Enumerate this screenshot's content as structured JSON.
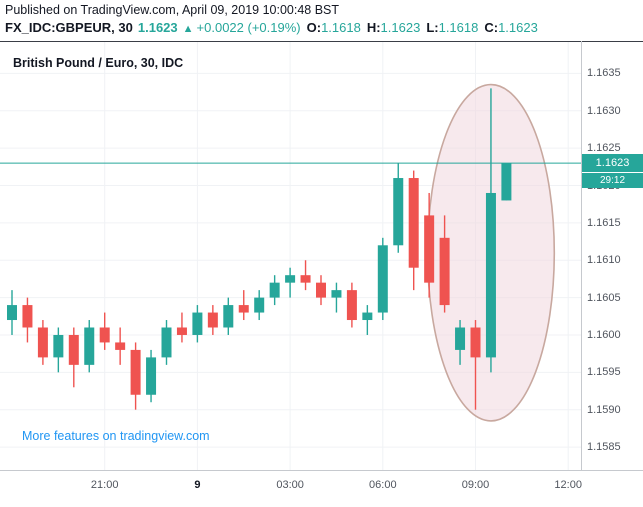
{
  "header": {
    "published_line": "Published on TradingView.com, April 09, 2019 10:00:48 BST",
    "symbol": "FX_IDC:GBPEUR, 30",
    "last_price": "1.1623",
    "up_arrow": "▲",
    "change": "+0.0022 (+0.19%)",
    "ohlc": [
      {
        "label": "O:",
        "value": "1.1618"
      },
      {
        "label": "H:",
        "value": "1.1623"
      },
      {
        "label": "L:",
        "value": "1.1618"
      },
      {
        "label": "C:",
        "value": "1.1623"
      }
    ]
  },
  "chart": {
    "promo_link": "More features on tradingview.com",
    "price_badge": "1.1623",
    "countdown_badge": "29:12"
  },
  "colors": {
    "up": "#26a69a",
    "down": "#ef5350",
    "link_blue": "#2196f3",
    "text_dark": "#131722",
    "text_axis": "#50555e",
    "highlight_fill": "#f0d7de",
    "highlight_stroke": "#c8a89f"
  },
  "chart_data": {
    "type": "candlestick",
    "title": "British Pound / Euro, 30, IDC",
    "symbol": "GBPEUR",
    "interval_minutes": 30,
    "last_price": 1.1623,
    "ylim": [
      1.1585,
      1.1635
    ],
    "grid": "faint",
    "y_ticks": [
      "1.1635",
      "1.1630",
      "1.1625",
      "1.1620",
      "1.1615",
      "1.1610",
      "1.1605",
      "1.1600",
      "1.1595",
      "1.1590",
      "1.1585"
    ],
    "x_ticks": [
      {
        "index": 6,
        "label": "21:00",
        "emphasis": false
      },
      {
        "index": 12,
        "label": "9",
        "emphasis": true
      },
      {
        "index": 18,
        "label": "03:00",
        "emphasis": false
      },
      {
        "index": 24,
        "label": "06:00",
        "emphasis": false
      },
      {
        "index": 30,
        "label": "09:00",
        "emphasis": false
      },
      {
        "index": 36,
        "label": "12:00",
        "emphasis": false
      }
    ],
    "candles": [
      {
        "t": "18:00",
        "o": 1.1602,
        "h": 1.1606,
        "l": 1.16,
        "c": 1.1604
      },
      {
        "t": "18:30",
        "o": 1.1604,
        "h": 1.1605,
        "l": 1.1599,
        "c": 1.1601
      },
      {
        "t": "19:00",
        "o": 1.1601,
        "h": 1.1602,
        "l": 1.1596,
        "c": 1.1597
      },
      {
        "t": "19:30",
        "o": 1.1597,
        "h": 1.1601,
        "l": 1.1595,
        "c": 1.16
      },
      {
        "t": "20:00",
        "o": 1.16,
        "h": 1.1601,
        "l": 1.1593,
        "c": 1.1596
      },
      {
        "t": "20:30",
        "o": 1.1596,
        "h": 1.1602,
        "l": 1.1595,
        "c": 1.1601
      },
      {
        "t": "21:00",
        "o": 1.1601,
        "h": 1.1603,
        "l": 1.1598,
        "c": 1.1599
      },
      {
        "t": "21:30",
        "o": 1.1599,
        "h": 1.1601,
        "l": 1.1596,
        "c": 1.1598
      },
      {
        "t": "22:00",
        "o": 1.1598,
        "h": 1.1599,
        "l": 1.159,
        "c": 1.1592
      },
      {
        "t": "22:30",
        "o": 1.1592,
        "h": 1.1598,
        "l": 1.1591,
        "c": 1.1597
      },
      {
        "t": "23:00",
        "o": 1.1597,
        "h": 1.1602,
        "l": 1.1596,
        "c": 1.1601
      },
      {
        "t": "23:30",
        "o": 1.1601,
        "h": 1.1603,
        "l": 1.1599,
        "c": 1.16
      },
      {
        "t": "00:00",
        "o": 1.16,
        "h": 1.1604,
        "l": 1.1599,
        "c": 1.1603
      },
      {
        "t": "00:30",
        "o": 1.1603,
        "h": 1.1604,
        "l": 1.16,
        "c": 1.1601
      },
      {
        "t": "01:00",
        "o": 1.1601,
        "h": 1.1605,
        "l": 1.16,
        "c": 1.1604
      },
      {
        "t": "01:30",
        "o": 1.1604,
        "h": 1.1606,
        "l": 1.1602,
        "c": 1.1603
      },
      {
        "t": "02:00",
        "o": 1.1603,
        "h": 1.1606,
        "l": 1.1602,
        "c": 1.1605
      },
      {
        "t": "02:30",
        "o": 1.1605,
        "h": 1.1608,
        "l": 1.1604,
        "c": 1.1607
      },
      {
        "t": "03:00",
        "o": 1.1607,
        "h": 1.1609,
        "l": 1.1605,
        "c": 1.1608
      },
      {
        "t": "03:30",
        "o": 1.1608,
        "h": 1.161,
        "l": 1.1606,
        "c": 1.1607
      },
      {
        "t": "04:00",
        "o": 1.1607,
        "h": 1.1608,
        "l": 1.1604,
        "c": 1.1605
      },
      {
        "t": "04:30",
        "o": 1.1605,
        "h": 1.1607,
        "l": 1.1603,
        "c": 1.1606
      },
      {
        "t": "05:00",
        "o": 1.1606,
        "h": 1.1607,
        "l": 1.1601,
        "c": 1.1602
      },
      {
        "t": "05:30",
        "o": 1.1602,
        "h": 1.1604,
        "l": 1.16,
        "c": 1.1603
      },
      {
        "t": "06:00",
        "o": 1.1603,
        "h": 1.1613,
        "l": 1.1602,
        "c": 1.1612
      },
      {
        "t": "06:30",
        "o": 1.1612,
        "h": 1.1623,
        "l": 1.1611,
        "c": 1.1621
      },
      {
        "t": "07:00",
        "o": 1.1621,
        "h": 1.1622,
        "l": 1.1606,
        "c": 1.1609
      },
      {
        "t": "07:30",
        "o": 1.1616,
        "h": 1.1619,
        "l": 1.1605,
        "c": 1.1607
      },
      {
        "t": "08:00",
        "o": 1.1613,
        "h": 1.1616,
        "l": 1.1603,
        "c": 1.1604
      },
      {
        "t": "08:30",
        "o": 1.1598,
        "h": 1.1602,
        "l": 1.1596,
        "c": 1.1601
      },
      {
        "t": "09:00",
        "o": 1.1601,
        "h": 1.1602,
        "l": 1.159,
        "c": 1.1597
      },
      {
        "t": "09:30",
        "o": 1.1597,
        "h": 1.1633,
        "l": 1.1595,
        "c": 1.1619
      },
      {
        "t": "10:00",
        "o": 1.1618,
        "h": 1.1623,
        "l": 1.1618,
        "c": 1.1623
      }
    ],
    "highlight_ellipse": {
      "center_index": 31,
      "center_price": 1.1611,
      "rx_candles": 4.1,
      "ry_price": 0.00225
    }
  }
}
